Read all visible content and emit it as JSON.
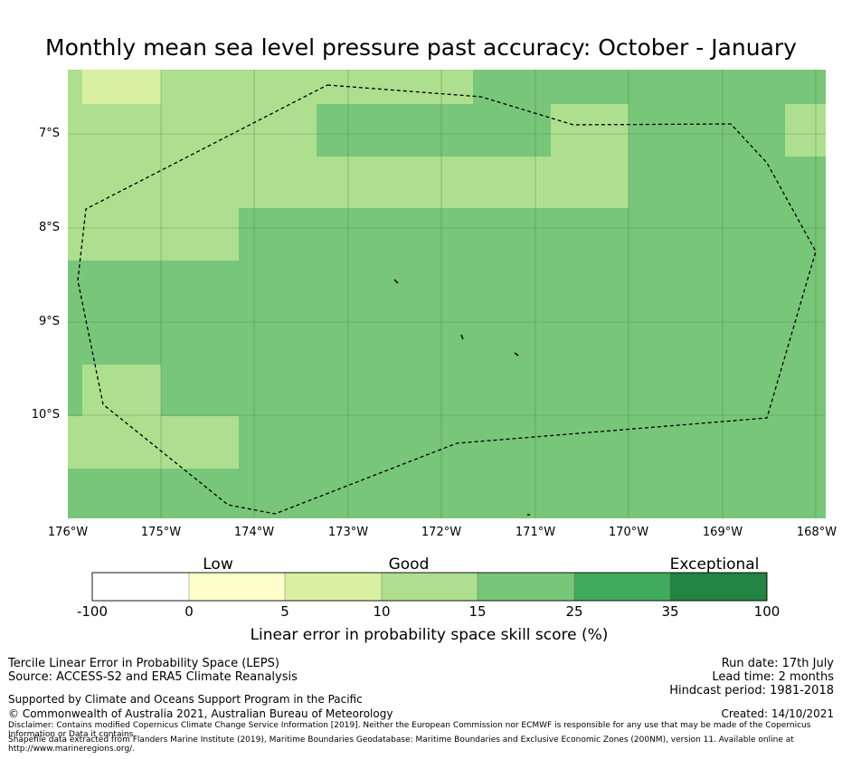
{
  "title": "Monthly mean sea level pressure past accuracy: October - January",
  "map": {
    "y_tick_labels": [
      "7°S",
      "8°S",
      "9°S",
      "10°S"
    ],
    "x_tick_labels": [
      "176°W",
      "175°W",
      "174°W",
      "173°W",
      "172°W",
      "171°W",
      "170°W",
      "169°W",
      "168°W"
    ],
    "lon_range": [
      -176,
      -167.9
    ],
    "lat_range": [
      -11.1,
      -6.3
    ],
    "boundary": "dashed maritime boundary (EEZ)",
    "colors": {
      "c5_10": "#d9efa1",
      "c10_15": "#addf8e",
      "c15_25": "#78c679",
      "c25_35": "#41ab5d",
      "c35_100": "#238443"
    }
  },
  "colorbar": {
    "categories": [
      "Low",
      "Good",
      "Exceptional"
    ],
    "ticks": [
      "-100",
      "0",
      "5",
      "10",
      "15",
      "25",
      "35",
      "100"
    ],
    "segment_colors": [
      "#ffffff",
      "#ffffcc",
      "#d9efa1",
      "#addf8e",
      "#78c679",
      "#41ab5d",
      "#238443"
    ],
    "label": "Linear error in probability space skill score (%)"
  },
  "footer": {
    "method": "Tercile Linear Error in Probability Space (LEPS)",
    "source": "Source: ACCESS-S2 and ERA5 Climate Reanalysis",
    "support": "Supported by Climate and Oceans Support Program in the Pacific",
    "copyright": "© Commonwealth of Australia 2021, Australian Bureau of Meteorology",
    "run_date": "Run date: 17th July",
    "lead_time": "Lead time: 2 months",
    "hindcast": "Hindcast period: 1981-2018",
    "created": "Created: 14/10/2021",
    "disclaimer": "Disclaimer: Contains modified Copernicus Climate Change Service Information [2019]. Neither the European Commission nor ECMWF is responsible for any use that may be made of the Copernicus Information or Data it contains.",
    "shapefile": "Shapefile data extracted from Flanders Marine Institute (2019), Maritime Boundaries Geodatabase: Maritime Boundaries and Exclusive Economic Zones (200NM), version 11. Available online at http://www.marineregions.org/."
  }
}
